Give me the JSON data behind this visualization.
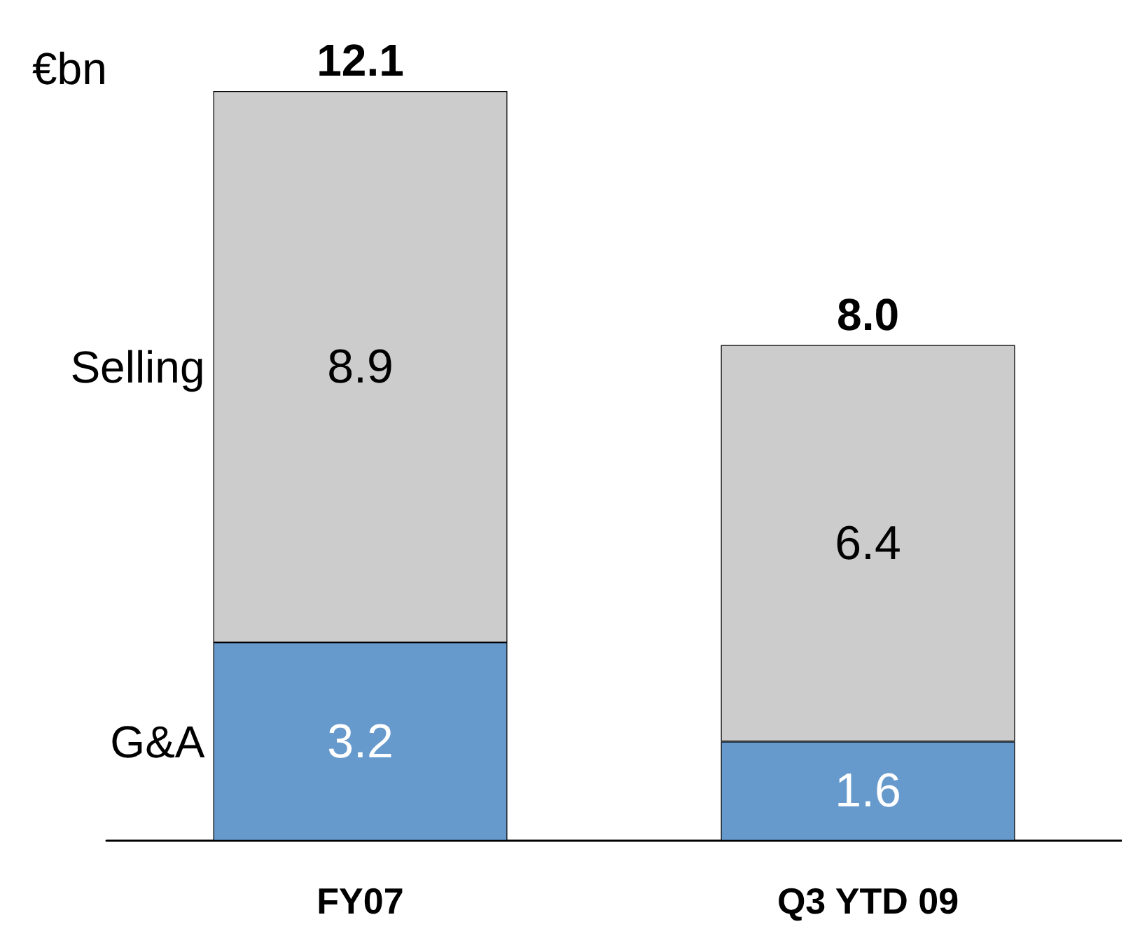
{
  "chart_data": {
    "type": "bar",
    "stacked": true,
    "ylabel": "€bn",
    "categories": [
      "FY07",
      "Q3 YTD 09"
    ],
    "series": [
      {
        "name": "G&A",
        "color": "#6699cc",
        "values": [
          3.2,
          1.6
        ]
      },
      {
        "name": "Selling",
        "color": "#cccccc",
        "values": [
          8.9,
          6.4
        ]
      }
    ],
    "data_labels": true,
    "totals": [
      "12.1",
      "8.0"
    ],
    "legend": false,
    "grid": false
  }
}
